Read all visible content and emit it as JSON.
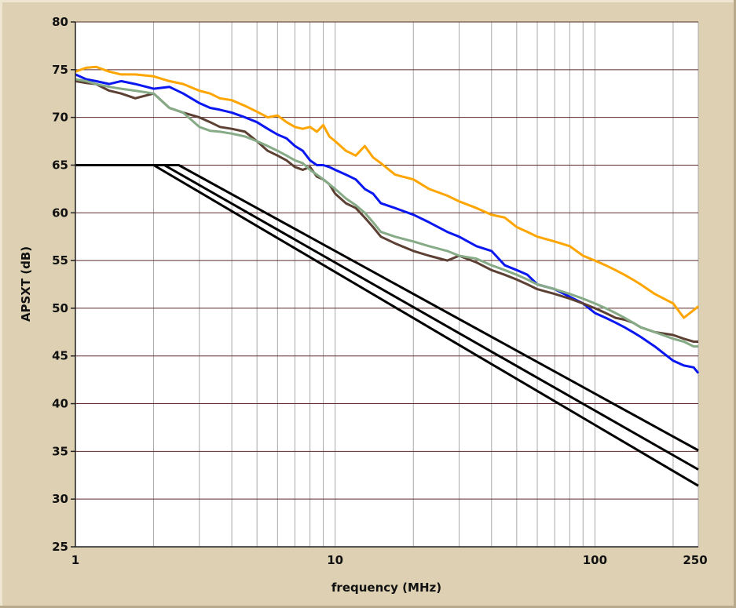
{
  "chart_data": {
    "type": "line",
    "title": "",
    "xlabel": "frequency (MHz)",
    "ylabel": "APSXT (dB)",
    "xscale": "log",
    "xlim": [
      1,
      250
    ],
    "ylim": [
      25,
      80
    ],
    "x_ticks": [
      1,
      10,
      100,
      250
    ],
    "x_tick_labels": [
      "1",
      "10",
      "100",
      "250"
    ],
    "y_ticks": [
      25,
      30,
      35,
      40,
      45,
      50,
      55,
      60,
      65,
      70,
      75,
      80
    ],
    "y_tick_labels": [
      "25",
      "30",
      "35",
      "40",
      "45",
      "50",
      "55",
      "60",
      "65",
      "70",
      "75",
      "80"
    ],
    "grid": true,
    "colors": {
      "plot_background": "#ffffff",
      "panel_background": "#ded1b3",
      "horizontal_grid": "#5a2a2a",
      "vertical_grid": "#a8a8a8"
    },
    "series": [
      {
        "color": "#ffa500",
        "x": [
          1,
          1.1,
          1.2,
          1.35,
          1.5,
          1.7,
          2,
          2.3,
          2.6,
          3,
          3.3,
          3.6,
          4,
          4.5,
          5,
          5.5,
          6,
          6.5,
          7,
          7.5,
          8,
          8.5,
          9,
          9.5,
          10,
          11,
          12,
          13,
          14,
          15,
          17,
          20,
          23,
          27,
          30,
          35,
          40,
          45,
          50,
          55,
          60,
          70,
          80,
          90,
          100,
          110,
          120,
          130,
          140,
          150,
          170,
          200,
          220,
          240,
          250
        ],
        "y": [
          74.8,
          75.2,
          75.3,
          74.8,
          74.5,
          74.5,
          74.3,
          73.8,
          73.5,
          72.8,
          72.5,
          72.0,
          71.8,
          71.2,
          70.6,
          70.0,
          70.2,
          69.5,
          69.0,
          68.8,
          69.0,
          68.5,
          69.2,
          68.0,
          67.5,
          66.5,
          66.0,
          67.0,
          65.8,
          65.2,
          64.0,
          63.5,
          62.5,
          61.8,
          61.2,
          60.5,
          59.8,
          59.5,
          58.5,
          58.0,
          57.5,
          57.0,
          56.5,
          55.5,
          55.0,
          54.5,
          54.0,
          53.5,
          53.0,
          52.5,
          51.5,
          50.5,
          49.0,
          49.8,
          50.2
        ]
      },
      {
        "color": "#0a17f0",
        "x": [
          1,
          1.1,
          1.2,
          1.35,
          1.5,
          1.7,
          2,
          2.3,
          2.6,
          3,
          3.3,
          3.6,
          4,
          4.5,
          5,
          5.5,
          6,
          6.5,
          7,
          7.5,
          8,
          8.5,
          9,
          9.5,
          10,
          11,
          12,
          13,
          14,
          15,
          17,
          20,
          23,
          27,
          30,
          35,
          40,
          45,
          50,
          55,
          60,
          70,
          80,
          90,
          100,
          110,
          120,
          130,
          140,
          150,
          170,
          200,
          220,
          240,
          250
        ],
        "y": [
          74.5,
          74.0,
          73.8,
          73.5,
          73.8,
          73.5,
          73.0,
          73.2,
          72.5,
          71.5,
          71.0,
          70.8,
          70.5,
          70.0,
          69.5,
          68.8,
          68.2,
          67.8,
          67.0,
          66.5,
          65.5,
          65.0,
          65.0,
          64.8,
          64.5,
          64.0,
          63.5,
          62.5,
          62.0,
          61.0,
          60.5,
          59.8,
          59.0,
          58.0,
          57.5,
          56.5,
          56.0,
          54.5,
          54.0,
          53.5,
          52.5,
          52.0,
          51.2,
          50.5,
          49.5,
          49.0,
          48.5,
          48.0,
          47.5,
          47.0,
          46.0,
          44.5,
          44.0,
          43.8,
          43.2
        ]
      },
      {
        "color": "#5c4033",
        "x": [
          1,
          1.1,
          1.2,
          1.35,
          1.5,
          1.7,
          2,
          2.3,
          2.6,
          3,
          3.3,
          3.6,
          4,
          4.5,
          5,
          5.5,
          6,
          6.5,
          7,
          7.5,
          8,
          8.5,
          9,
          9.5,
          10,
          11,
          12,
          13,
          14,
          15,
          17,
          20,
          23,
          27,
          30,
          35,
          40,
          45,
          50,
          55,
          60,
          70,
          80,
          90,
          100,
          110,
          120,
          130,
          140,
          150,
          170,
          200,
          220,
          240,
          250
        ],
        "y": [
          73.8,
          73.6,
          73.5,
          72.8,
          72.5,
          72.0,
          72.5,
          71.0,
          70.5,
          70.0,
          69.5,
          69.0,
          68.8,
          68.5,
          67.5,
          66.5,
          66.0,
          65.5,
          64.8,
          64.5,
          64.8,
          63.8,
          63.5,
          63.0,
          62.0,
          61.0,
          60.5,
          59.5,
          58.5,
          57.5,
          56.8,
          56.0,
          55.5,
          55.0,
          55.5,
          54.8,
          54.0,
          53.5,
          53.0,
          52.5,
          52.0,
          51.5,
          51.0,
          50.5,
          50.0,
          49.5,
          49.0,
          48.8,
          48.5,
          48.0,
          47.5,
          47.2,
          46.8,
          46.5,
          46.5
        ]
      },
      {
        "color": "#86ab86",
        "x": [
          1,
          1.1,
          1.2,
          1.35,
          1.5,
          1.7,
          2,
          2.3,
          2.6,
          3,
          3.3,
          3.6,
          4,
          4.5,
          5,
          5.5,
          6,
          6.5,
          7,
          7.5,
          8,
          8.5,
          9,
          9.5,
          10,
          11,
          12,
          13,
          14,
          15,
          17,
          20,
          23,
          27,
          30,
          35,
          40,
          45,
          50,
          55,
          60,
          70,
          80,
          90,
          100,
          110,
          120,
          130,
          140,
          150,
          170,
          200,
          220,
          240,
          250
        ],
        "y": [
          74.0,
          73.8,
          73.5,
          73.2,
          73.0,
          72.8,
          72.5,
          71.0,
          70.5,
          69.0,
          68.6,
          68.5,
          68.3,
          68.0,
          67.5,
          67.0,
          66.5,
          66.0,
          65.5,
          65.2,
          64.5,
          64.0,
          63.5,
          63.0,
          62.5,
          61.5,
          60.8,
          60.0,
          59.0,
          58.0,
          57.5,
          57.0,
          56.5,
          56.0,
          55.5,
          55.2,
          54.5,
          54.0,
          53.5,
          53.0,
          52.5,
          52.0,
          51.5,
          51.0,
          50.5,
          50.0,
          49.5,
          49.0,
          48.5,
          48.0,
          47.5,
          46.8,
          46.5,
          46.0,
          46.0
        ]
      },
      {
        "color": "#000000",
        "x": [
          1,
          2.0,
          250
        ],
        "y": [
          65,
          65,
          31.4
        ]
      },
      {
        "color": "#000000",
        "x": [
          1,
          2.2,
          250
        ],
        "y": [
          65,
          65,
          33.1
        ]
      },
      {
        "color": "#000000",
        "x": [
          1,
          2.5,
          250
        ],
        "y": [
          65,
          65,
          35.1
        ]
      }
    ]
  }
}
